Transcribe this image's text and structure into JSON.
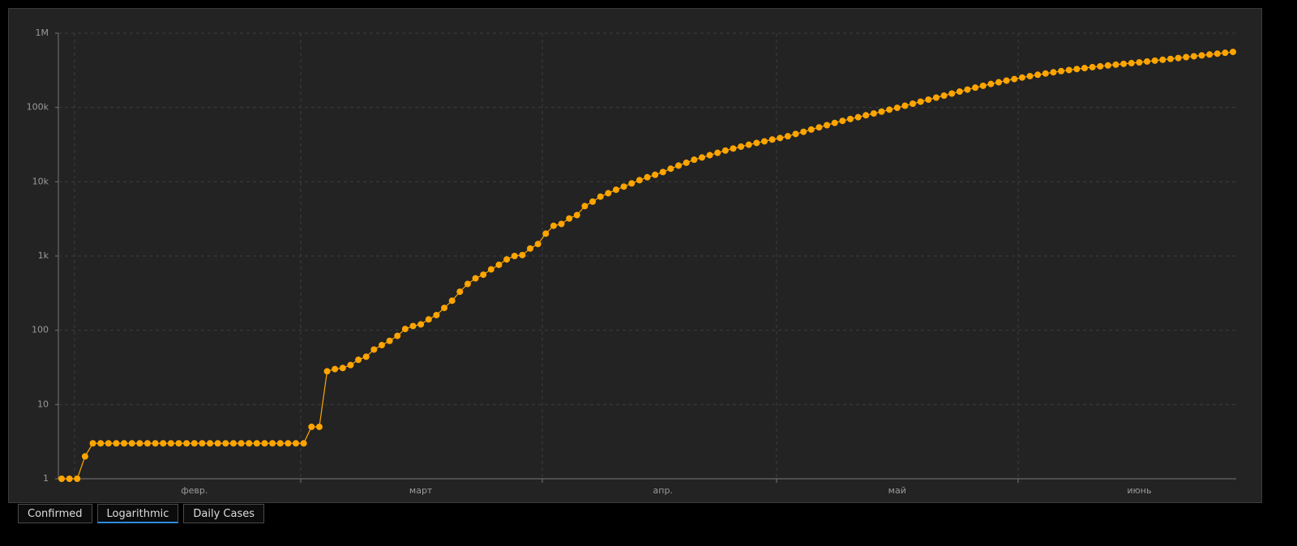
{
  "chart_data": {
    "type": "line",
    "yscale": "log",
    "color": "#ffa500",
    "grid": true,
    "categories": [
      null,
      null,
      null,
      null,
      null,
      null,
      null,
      null,
      null,
      null,
      null,
      null,
      null,
      null,
      null,
      null,
      null,
      "февр.",
      null,
      null,
      null,
      null,
      null,
      null,
      null,
      null,
      null,
      null,
      null,
      null,
      null,
      null,
      null,
      null,
      null,
      null,
      null,
      null,
      null,
      null,
      null,
      null,
      null,
      null,
      null,
      null,
      "март",
      null,
      null,
      null,
      null,
      null,
      null,
      null,
      null,
      null,
      null,
      null,
      null,
      null,
      null,
      null,
      null,
      null,
      null,
      null,
      null,
      null,
      null,
      null,
      null,
      null,
      null,
      null,
      null,
      null,
      null,
      "апр.",
      null,
      null,
      null,
      null,
      null,
      null,
      null,
      null,
      null,
      null,
      null,
      null,
      null,
      null,
      null,
      null,
      null,
      null,
      null,
      null,
      null,
      null,
      null,
      null,
      null,
      null,
      null,
      null,
      null,
      "май",
      null,
      null,
      null,
      null,
      null,
      null,
      null,
      null,
      null,
      null,
      null,
      null,
      null,
      null,
      null,
      null,
      null,
      null,
      null,
      null,
      null,
      null,
      null,
      null,
      null,
      null,
      null,
      null,
      null,
      null,
      "июнь",
      null,
      null,
      null,
      null,
      null,
      null,
      null,
      null,
      null,
      null,
      null,
      null
    ],
    "values": [
      1,
      1,
      1,
      2,
      3,
      3,
      3,
      3,
      3,
      3,
      3,
      3,
      3,
      3,
      3,
      3,
      3,
      3,
      3,
      3,
      3,
      3,
      3,
      3,
      3,
      3,
      3,
      3,
      3,
      3,
      3,
      3,
      5,
      5,
      28,
      30,
      31,
      34,
      40,
      44,
      55,
      63,
      72,
      84,
      104,
      114,
      120,
      140,
      160,
      200,
      250,
      330,
      420,
      500,
      560,
      660,
      760,
      900,
      1000,
      1030,
      1260,
      1450,
      2000,
      2550,
      2700,
      3200,
      3550,
      4700,
      5400,
      6300,
      7000,
      7800,
      8600,
      9500,
      10500,
      11500,
      12400,
      13500,
      15000,
      16500,
      18000,
      19800,
      21200,
      22800,
      24500,
      26300,
      28000,
      29700,
      31500,
      33300,
      35000,
      37000,
      38800,
      41000,
      44000,
      47000,
      50500,
      54000,
      57800,
      62000,
      66000,
      70000,
      74000,
      78500,
      83000,
      88000,
      93500,
      99000,
      105500,
      112400,
      119700,
      127500,
      135800,
      144600,
      153900,
      163800,
      174200,
      185000,
      196000,
      207200,
      218500,
      230000,
      241500,
      253000,
      264500,
      275800,
      287000,
      298000,
      308700,
      319100,
      329300,
      339300,
      349100,
      358700,
      368200,
      377500,
      386700,
      395700,
      404700,
      415900,
      427300,
      439000,
      451000,
      463400,
      476100,
      489200,
      502600,
      516400,
      530600,
      545200,
      560200
    ],
    "ylim": [
      1,
      1000000
    ],
    "yticks": [
      1,
      10,
      100,
      {
        "value": 1000,
        "label": "1k"
      },
      {
        "value": 10000,
        "label": "10k"
      },
      {
        "value": 100000,
        "label": "100k"
      },
      {
        "value": 1000000,
        "label": "1M"
      }
    ]
  },
  "tabs": [
    {
      "label": "Confirmed",
      "active": false
    },
    {
      "label": "Logarithmic",
      "active": true
    },
    {
      "label": "Daily Cases",
      "active": false
    }
  ]
}
